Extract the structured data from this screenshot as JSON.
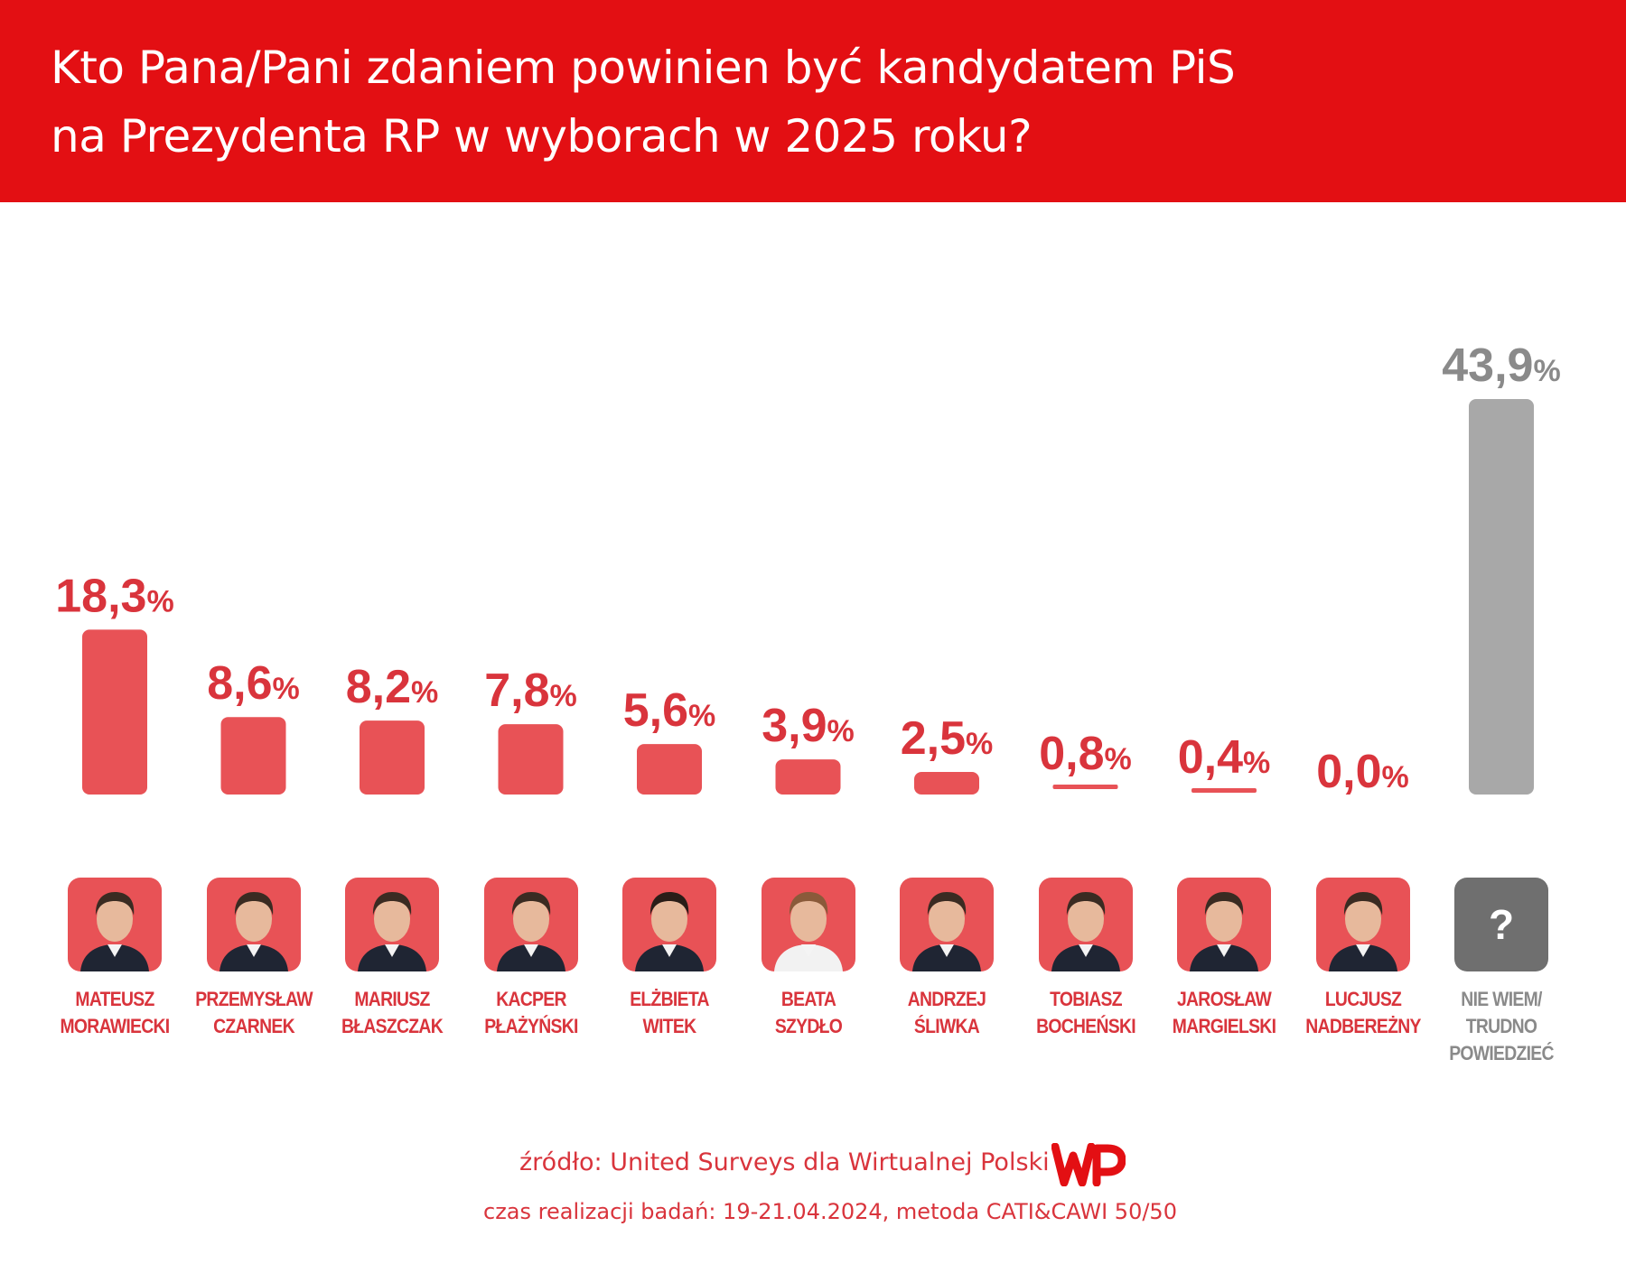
{
  "title": {
    "line1": "Kto Pana/Pani zdaniem powinien być kandydatem PiS",
    "line2": "na Prezydenta RP w wyborach w 2025 roku?"
  },
  "chart_data": {
    "type": "bar",
    "title": "Kto Pana/Pani zdaniem powinien być kandydatem PiS na Prezydenta RP w wyborach w 2025 roku?",
    "unit": "%",
    "categories": [
      "MATEUSZ MORAWIECKI",
      "PRZEMYSŁAW CZARNEK",
      "MARIUSZ BŁASZCZAK",
      "KACPER PŁAŻYŃSKI",
      "ELŻBIETA WITEK",
      "BEATA SZYDŁO",
      "ANDRZEJ ŚLIWKA",
      "TOBIASZ BOCHEŃSKI",
      "JAROSŁAW MARGIELSKI",
      "LUCJUSZ NADBEREŻNY",
      "NIE WIEM/ TRUDNO POWIEDZIEĆ"
    ],
    "values": [
      18.3,
      8.6,
      8.2,
      7.8,
      5.6,
      3.9,
      2.5,
      0.8,
      0.4,
      0.0,
      43.9
    ],
    "value_labels": [
      "18,3",
      "8,6",
      "8,2",
      "7,8",
      "5,6",
      "3,9",
      "2,5",
      "0,8",
      "0,4",
      "0,0",
      "43,9"
    ],
    "ylim": [
      0,
      43.9
    ],
    "xlabel": "",
    "ylabel": "",
    "grid": false,
    "colors": {
      "candidate": "#e85256",
      "undecided": "#a8a8a8",
      "label_candidate": "#d9343c",
      "label_undecided": "#8a8a8a"
    }
  },
  "candidates": [
    {
      "first": "MATEUSZ",
      "last": "MORAWIECKI"
    },
    {
      "first": "PRZEMYSŁAW",
      "last": "CZARNEK"
    },
    {
      "first": "MARIUSZ",
      "last": "BŁASZCZAK"
    },
    {
      "first": "KACPER",
      "last": "PŁAŻYŃSKI"
    },
    {
      "first": "ELŻBIETA",
      "last": "WITEK"
    },
    {
      "first": "BEATA",
      "last": "SZYDŁO"
    },
    {
      "first": "ANDRZEJ",
      "last": "ŚLIWKA"
    },
    {
      "first": "TOBIASZ",
      "last": "BOCHEŃSKI"
    },
    {
      "first": "JAROSŁAW",
      "last": "MARGIELSKI"
    },
    {
      "first": "LUCJUSZ",
      "last": "NADBEREŻNY"
    }
  ],
  "undecided": {
    "line1": "NIE WIEM/",
    "line2": "TRUDNO",
    "line3": "POWIEDZIEĆ",
    "icon_text": "?"
  },
  "footer": {
    "source": "źródło: United Surveys dla Wirtualnej Polski",
    "date": "czas realizacji badań: 19-21.04.2024, metoda CATI&CAWI 50/50",
    "logo_text": "WP"
  },
  "colors": {
    "header_bg": "#e30f13",
    "accent": "#d9343c"
  }
}
